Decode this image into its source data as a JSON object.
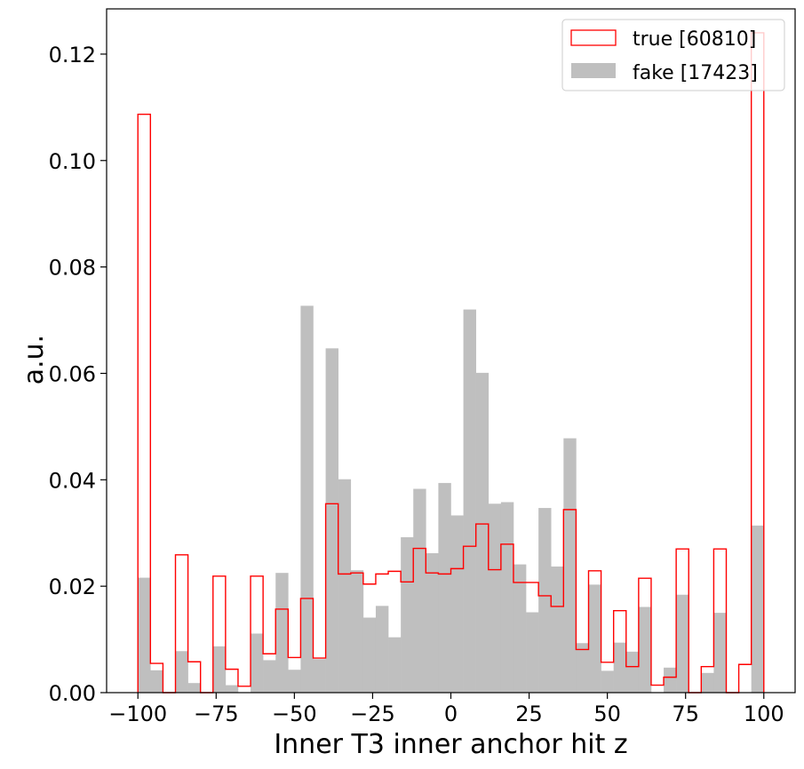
{
  "chart_data": {
    "type": "histogram",
    "xlabel": "Inner T3 inner anchor hit z",
    "ylabel": "a.u.",
    "xlim": [
      -110,
      110
    ],
    "ylim": [
      0,
      0.1285
    ],
    "legend_position": "top-right",
    "bin_edges": [
      -100,
      -96,
      -92,
      -88,
      -84,
      -80,
      -76,
      -72,
      -68,
      -64,
      -60,
      -56,
      -52,
      -48,
      -44,
      -40,
      -36,
      -32,
      -28,
      -24,
      -20,
      -16,
      -12,
      -8,
      -4,
      0,
      4,
      8,
      12,
      16,
      20,
      24,
      28,
      32,
      36,
      40,
      44,
      48,
      52,
      56,
      60,
      64,
      68,
      72,
      76,
      80,
      84,
      88,
      92,
      96,
      100
    ],
    "xticks": [
      {
        "value": -100,
        "label": "−100"
      },
      {
        "value": -75,
        "label": "−75"
      },
      {
        "value": -50,
        "label": "−50"
      },
      {
        "value": -25,
        "label": "−25"
      },
      {
        "value": 0,
        "label": "0"
      },
      {
        "value": 25,
        "label": "25"
      },
      {
        "value": 50,
        "label": "50"
      },
      {
        "value": 75,
        "label": "75"
      },
      {
        "value": 100,
        "label": "100"
      }
    ],
    "yticks": [
      {
        "value": 0.0,
        "label": "0.00"
      },
      {
        "value": 0.02,
        "label": "0.02"
      },
      {
        "value": 0.04,
        "label": "0.04"
      },
      {
        "value": 0.06,
        "label": "0.06"
      },
      {
        "value": 0.08,
        "label": "0.08"
      },
      {
        "value": 0.1,
        "label": "0.10"
      },
      {
        "value": 0.12,
        "label": "0.12"
      }
    ],
    "series": [
      {
        "name": "true [60810]",
        "style": "step",
        "color": "#ff0000",
        "values": [
          0.1087,
          0.0055,
          0,
          0.0259,
          0.0058,
          0,
          0.0219,
          0.0044,
          0.0012,
          0.0219,
          0.0073,
          0.0157,
          0.0066,
          0.0177,
          0.0065,
          0.0355,
          0.0223,
          0.0225,
          0.0204,
          0.0223,
          0.0228,
          0.0208,
          0.0271,
          0.0225,
          0.0223,
          0.0233,
          0.0275,
          0.0317,
          0.0231,
          0.0279,
          0.0207,
          0.0207,
          0.0182,
          0.0162,
          0.0344,
          0.0081,
          0.0229,
          0.0057,
          0.0154,
          0.0049,
          0.0215,
          0.0014,
          0.0029,
          0.027,
          0,
          0.0049,
          0.027,
          0,
          0.0053,
          0.124
        ]
      },
      {
        "name": "fake [17423]",
        "style": "filled",
        "color": "#bfbfbf",
        "values": [
          0.0216,
          0.0042,
          0,
          0.0078,
          0.0018,
          0,
          0.0087,
          0.0014,
          0,
          0.0111,
          0.0061,
          0.0225,
          0.0043,
          0.0727,
          0.0063,
          0.0647,
          0.0401,
          0.023,
          0.0141,
          0.0163,
          0.0104,
          0.0292,
          0.0383,
          0.0262,
          0.0394,
          0.0333,
          0.072,
          0.0601,
          0.0355,
          0.0358,
          0.0241,
          0.0151,
          0.0347,
          0.0237,
          0.0478,
          0.0093,
          0.0203,
          0.0041,
          0.0094,
          0.0077,
          0.0161,
          0,
          0.0047,
          0.0184,
          0,
          0.0037,
          0.015,
          0,
          0,
          0.0314
        ]
      }
    ]
  }
}
